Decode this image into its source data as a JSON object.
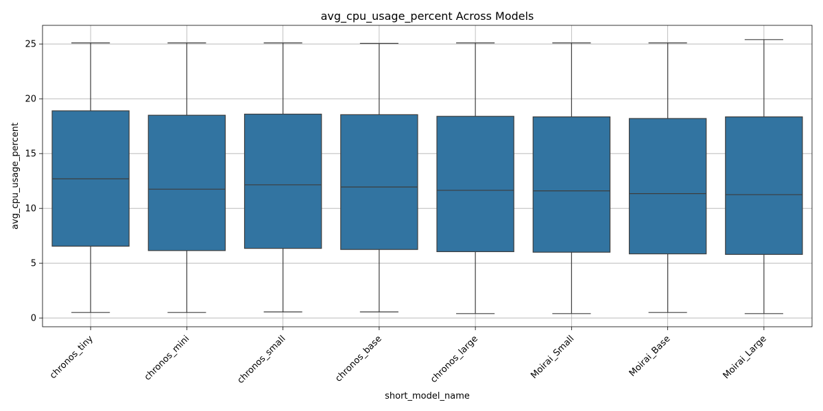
{
  "chart_data": {
    "type": "box",
    "title": "avg_cpu_usage_percent Across Models",
    "xlabel": "short_model_name",
    "ylabel": "avg_cpu_usage_percent",
    "ylim": [
      -0.8,
      26.7
    ],
    "yticks": [
      0,
      5,
      10,
      15,
      20,
      25
    ],
    "grid": true,
    "box_color": "#3274a1",
    "line_color": "#3d3d3d",
    "grid_color": "#b0b0b0",
    "categories": [
      "chronos_tiny",
      "chronos_mini",
      "chronos_small",
      "chronos_base",
      "chronos_large",
      "Moirai_Small",
      "Moirai_Base",
      "Moirai_Large"
    ],
    "boxes": [
      {
        "min": 0.5,
        "q1": 6.55,
        "median": 12.7,
        "q3": 18.9,
        "max": 25.1
      },
      {
        "min": 0.5,
        "q1": 6.15,
        "median": 11.75,
        "q3": 18.5,
        "max": 25.1
      },
      {
        "min": 0.55,
        "q1": 6.35,
        "median": 12.15,
        "q3": 18.6,
        "max": 25.1
      },
      {
        "min": 0.55,
        "q1": 6.25,
        "median": 11.95,
        "q3": 18.55,
        "max": 25.05
      },
      {
        "min": 0.4,
        "q1": 6.05,
        "median": 11.65,
        "q3": 18.4,
        "max": 25.1
      },
      {
        "min": 0.4,
        "q1": 6.0,
        "median": 11.6,
        "q3": 18.35,
        "max": 25.1
      },
      {
        "min": 0.5,
        "q1": 5.85,
        "median": 11.35,
        "q3": 18.2,
        "max": 25.1
      },
      {
        "min": 0.4,
        "q1": 5.8,
        "median": 11.25,
        "q3": 18.35,
        "max": 25.4
      }
    ]
  }
}
